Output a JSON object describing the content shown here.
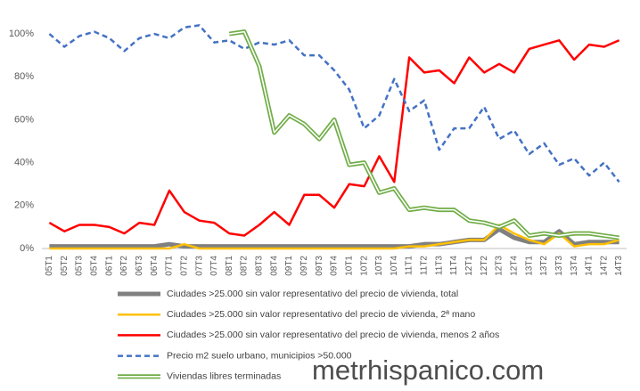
{
  "chart_data": {
    "type": "line",
    "categories": [
      "05T1",
      "05T2",
      "05T3",
      "05T4",
      "06T1",
      "06T2",
      "06T3",
      "06T4",
      "07T1",
      "07T2",
      "07T3",
      "07T4",
      "08T1",
      "08T2",
      "08T3",
      "08T4",
      "09T1",
      "09T2",
      "09T3",
      "09T4",
      "10T1",
      "10T2",
      "10T3",
      "10T4",
      "11T1",
      "11T2",
      "11T3",
      "11T4",
      "12T1",
      "12T2",
      "12T3",
      "12T4",
      "13T1",
      "13T2",
      "13T3",
      "13T4",
      "14T1",
      "14T2",
      "14T3"
    ],
    "ylim": [
      0,
      105
    ],
    "yticks": [
      {
        "value": 0,
        "label": "0%"
      },
      {
        "value": 20,
        "label": "20%"
      },
      {
        "value": 40,
        "label": "40%"
      },
      {
        "value": 60,
        "label": "60%"
      },
      {
        "value": 80,
        "label": "80%"
      },
      {
        "value": 100,
        "label": "100%"
      }
    ],
    "grid": false,
    "series": [
      {
        "name": "Ciudades >25.000 sin valor representativo del precio de vivienda, total",
        "color": "#808080",
        "style": "solid",
        "width": 5,
        "values": [
          1,
          1,
          1,
          1,
          1,
          1,
          1,
          1,
          2,
          1,
          1,
          1,
          1,
          1,
          1,
          1,
          1,
          1,
          1,
          1,
          1,
          1,
          1,
          1,
          1,
          2,
          2,
          3,
          4,
          4,
          9,
          5,
          3,
          3,
          8,
          2,
          3,
          3,
          3
        ]
      },
      {
        "name": "Ciudades >25.000 sin valor representativo del precio de vivienda, 2ª mano",
        "color": "#ffc000",
        "style": "solid",
        "width": 2.5,
        "values": [
          0,
          0,
          0,
          0,
          0,
          0,
          0,
          0,
          0,
          2,
          0,
          0,
          0,
          0,
          0,
          0,
          0,
          0,
          0,
          0,
          0,
          0,
          0,
          0,
          1,
          1,
          2,
          3,
          4,
          4,
          11,
          7,
          4,
          2,
          7,
          1,
          2,
          2,
          4
        ]
      },
      {
        "name": "Ciudades >25.000 sin valor representativo del precio de vivienda, menos 2 años",
        "color": "#ff0000",
        "style": "solid",
        "width": 2.5,
        "values": [
          12,
          8,
          11,
          11,
          10,
          7,
          12,
          11,
          27,
          17,
          13,
          12,
          7,
          6,
          11,
          17,
          11,
          25,
          25,
          19,
          30,
          29,
          43,
          31,
          89,
          82,
          83,
          77,
          89,
          82,
          86,
          82,
          93,
          95,
          97,
          88,
          95,
          94,
          97
        ]
      },
      {
        "name": "Precio m2 suelo urbano, municipios >50.000",
        "color": "#4472c4",
        "style": "dashed",
        "width": 2.5,
        "values": [
          100,
          94,
          99,
          101,
          98,
          92,
          98,
          100,
          98,
          103,
          104,
          96,
          97,
          93,
          96,
          95,
          97,
          90,
          90,
          83,
          74,
          56,
          62,
          79,
          64,
          69,
          46,
          56,
          56,
          66,
          51,
          55,
          44,
          49,
          39,
          42,
          34,
          40,
          31
        ]
      },
      {
        "name": "Viviendas libres terminadas",
        "color": "#70ad47",
        "style": "double",
        "width": 5,
        "values": [
          null,
          null,
          null,
          null,
          null,
          null,
          null,
          null,
          null,
          null,
          null,
          null,
          100,
          101,
          85,
          54,
          62,
          58,
          51,
          60,
          39,
          40,
          26,
          28,
          18,
          19,
          18,
          18,
          13,
          12,
          10,
          13,
          6,
          7,
          6,
          7,
          7,
          6,
          5
        ]
      }
    ],
    "watermark": "metrhispanico.com"
  }
}
